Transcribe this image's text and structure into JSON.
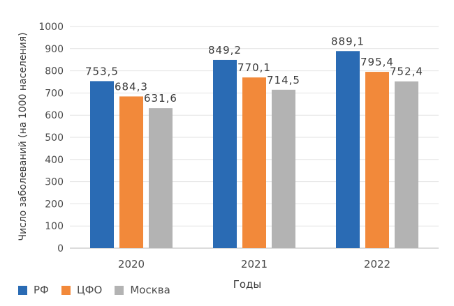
{
  "chart_data": {
    "type": "bar",
    "categories": [
      "2020",
      "2021",
      "2022"
    ],
    "series": [
      {
        "name": "РФ",
        "color": "#2a6bb4",
        "values": [
          753.5,
          849.2,
          889.1
        ],
        "labels": [
          "753,5",
          "849,2",
          "889,1"
        ]
      },
      {
        "name": "ЦФО",
        "color": "#f2893a",
        "values": [
          684.3,
          770.1,
          795.4
        ],
        "labels": [
          "684,3",
          "770,1",
          "795,4"
        ]
      },
      {
        "name": "Москва",
        "color": "#b3b3b3",
        "values": [
          631.6,
          714.5,
          752.4
        ],
        "labels": [
          "631,6",
          "714,5",
          "752,4"
        ]
      }
    ],
    "xlabel": "Годы",
    "ylabel": "Число заболеваний (на 1000 населения)",
    "ylim": [
      0,
      1000
    ],
    "yticks": [
      0,
      100,
      200,
      300,
      400,
      500,
      600,
      700,
      800,
      900,
      1000
    ],
    "grid": true,
    "legend_position": "bottom-left"
  }
}
